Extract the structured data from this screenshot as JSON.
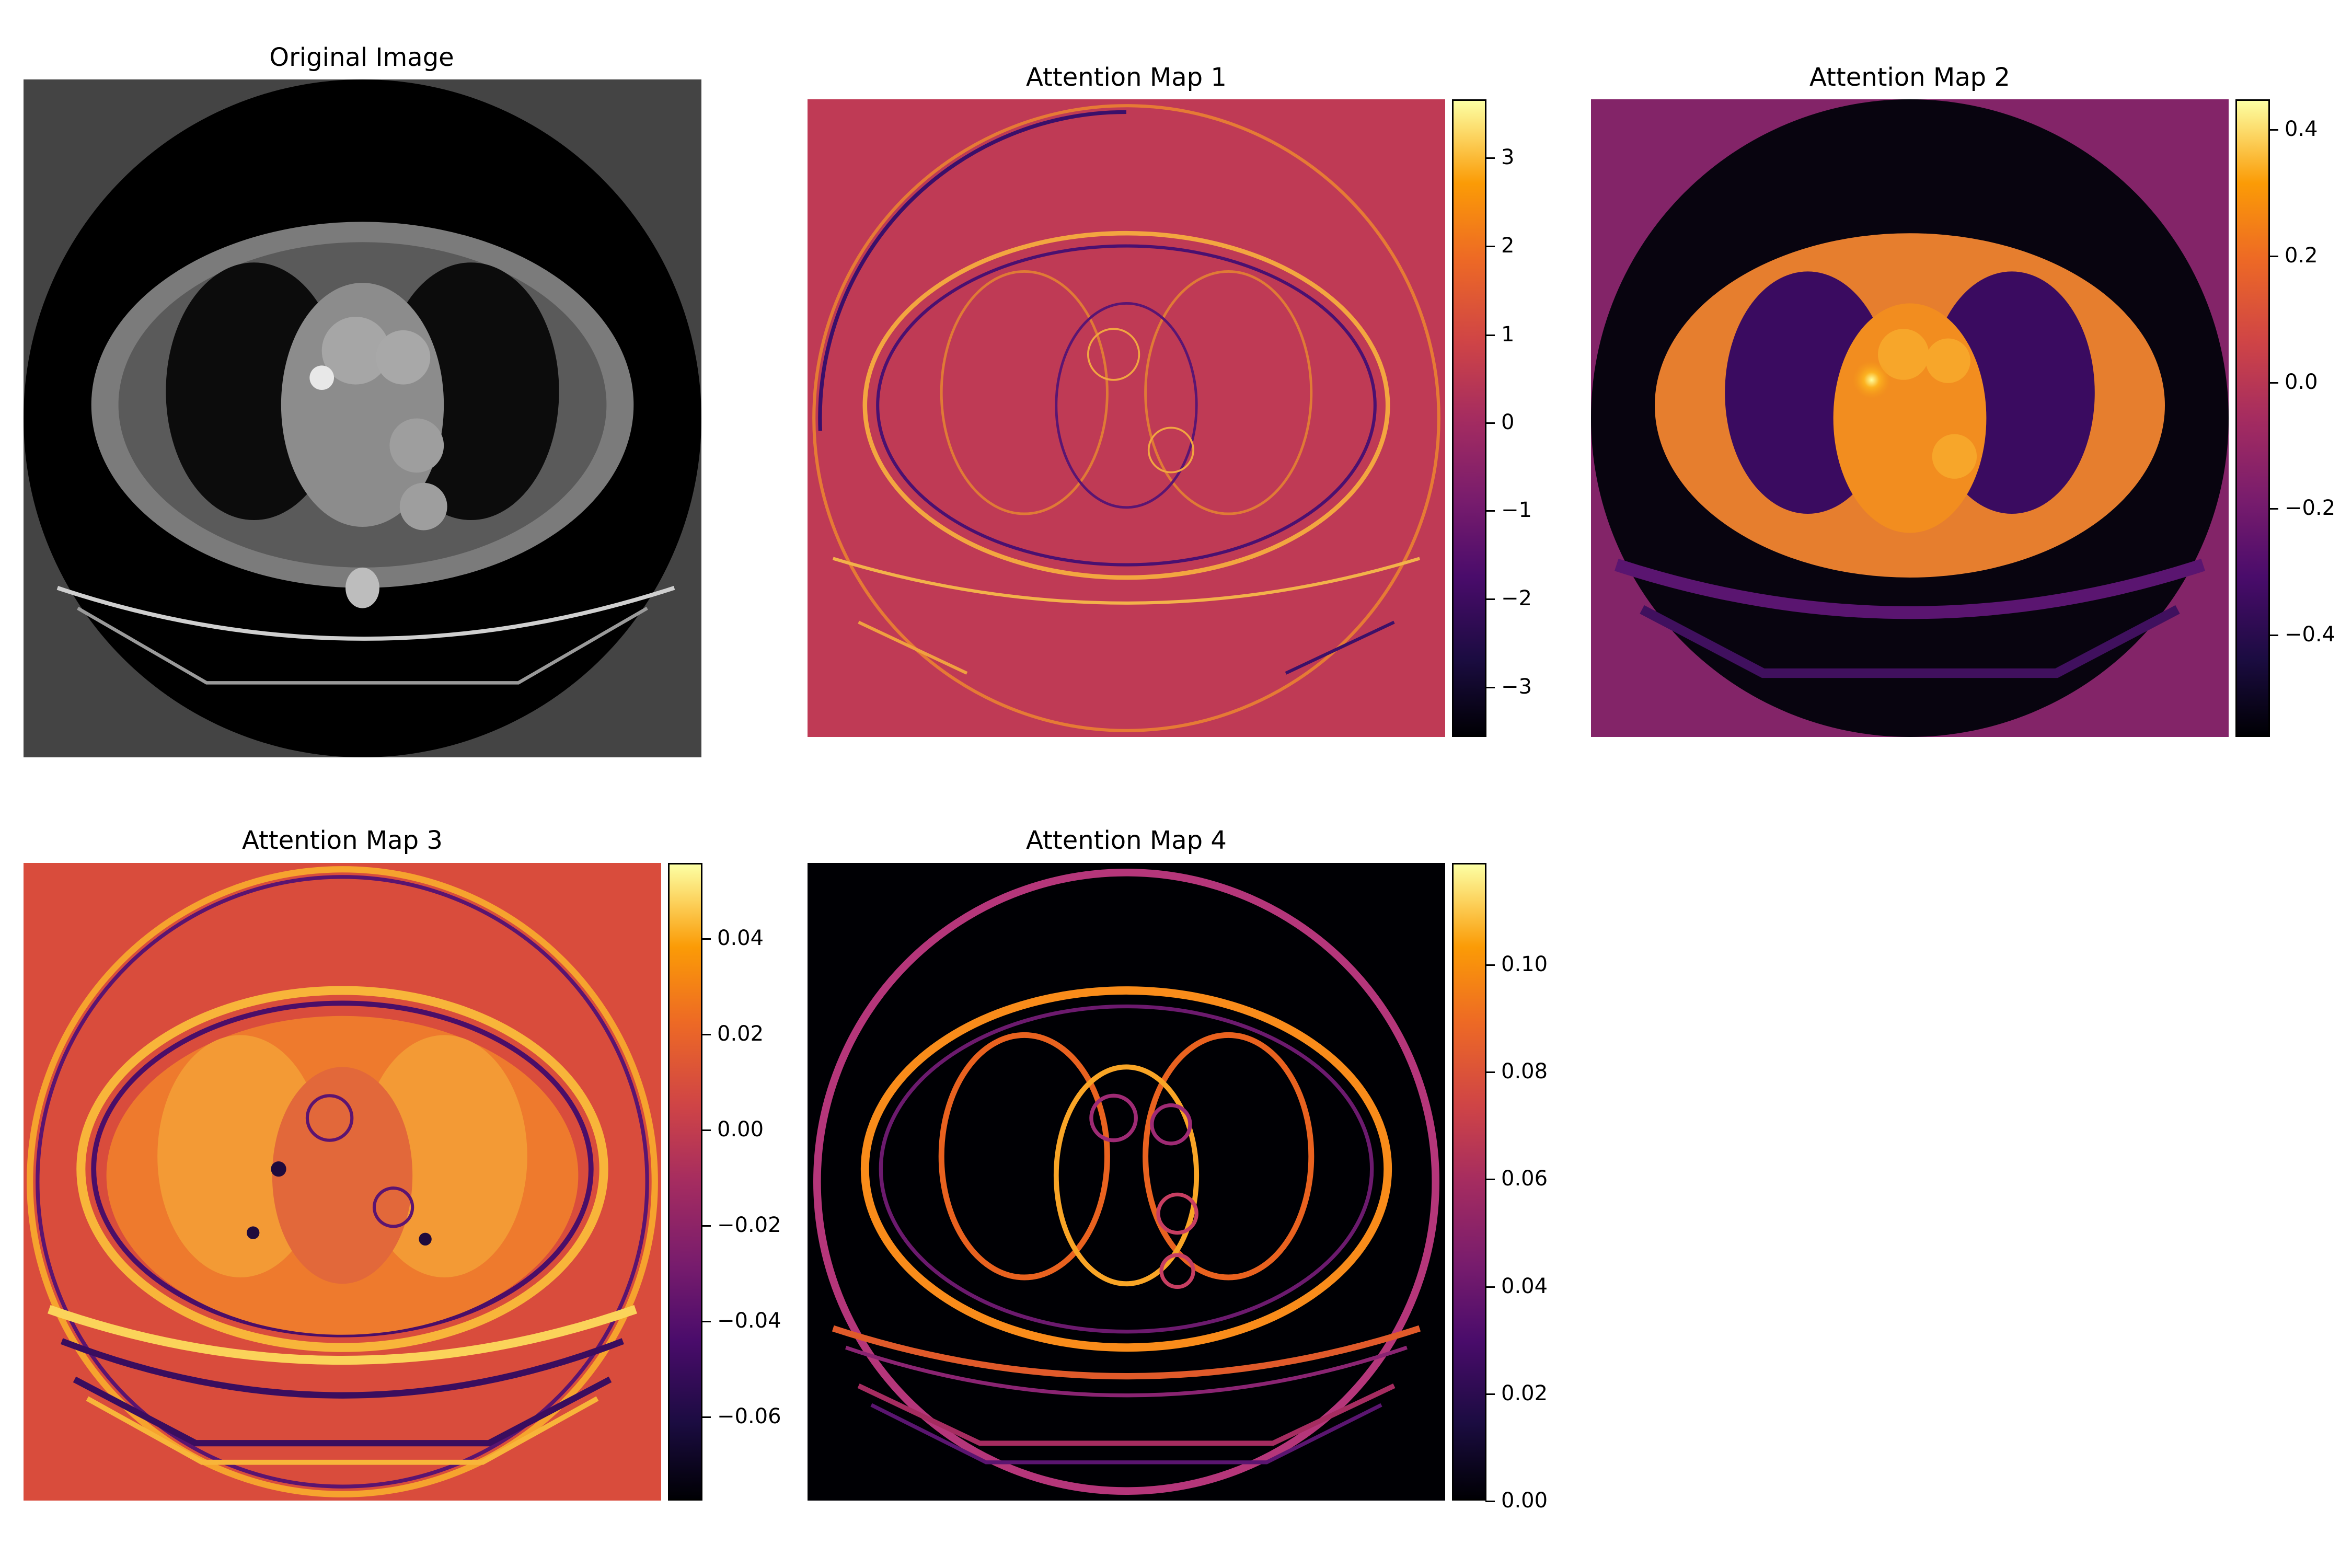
{
  "chart_data": [
    {
      "type": "heatmap",
      "title": "Original Image",
      "colormap": "gray",
      "content": "axial chest CT slice"
    },
    {
      "type": "heatmap",
      "title": "Attention Map 1",
      "colormap": "inferno",
      "colorbar": {
        "range": [
          -3.6,
          3.6
        ],
        "ticks": [
          "3",
          "2",
          "1",
          "0",
          "−1",
          "−2",
          "−3"
        ],
        "tick_values": [
          3,
          2,
          1,
          0,
          -1,
          -2,
          -3
        ]
      }
    },
    {
      "type": "heatmap",
      "title": "Attention Map 2",
      "colormap": "inferno",
      "colorbar": {
        "range": [
          -0.56,
          0.45
        ],
        "ticks": [
          "0.4",
          "0.2",
          "0.0",
          "−0.2",
          "−0.4"
        ],
        "tick_values": [
          0.4,
          0.2,
          0.0,
          -0.2,
          -0.4
        ]
      }
    },
    {
      "type": "heatmap",
      "title": "Attention Map 3",
      "colormap": "inferno",
      "colorbar": {
        "range": [
          -0.078,
          0.055
        ],
        "ticks": [
          "0.04",
          "0.02",
          "0.00",
          "−0.02",
          "−0.04",
          "−0.06"
        ],
        "tick_values": [
          0.04,
          0.02,
          0.0,
          -0.02,
          -0.04,
          -0.06
        ]
      }
    },
    {
      "type": "heatmap",
      "title": "Attention Map 4",
      "colormap": "inferno",
      "colorbar": {
        "range": [
          0.0,
          0.119
        ],
        "ticks": [
          "0.10",
          "0.08",
          "0.06",
          "0.04",
          "0.02",
          "0.00"
        ],
        "tick_values": [
          0.1,
          0.08,
          0.06,
          0.04,
          0.02,
          0.0
        ]
      }
    }
  ]
}
